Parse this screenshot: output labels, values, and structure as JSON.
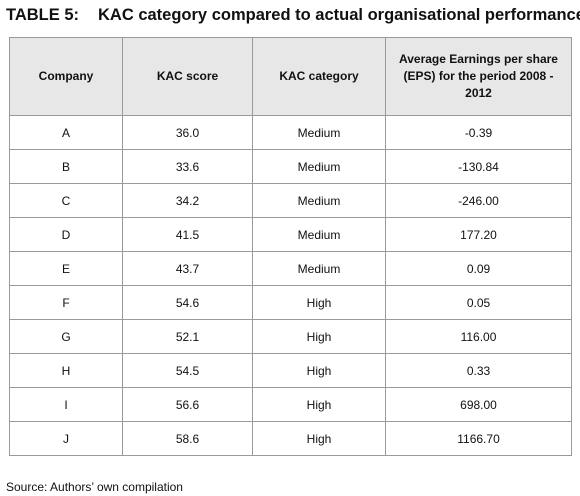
{
  "title": {
    "label": "TABLE 5:",
    "text": "KAC category compared to actual organisational performance"
  },
  "table": {
    "headers": [
      "Company",
      "KAC score",
      "KAC category",
      "Average Earnings per share (EPS) for the period 2008 - 2012"
    ],
    "rows": [
      [
        "A",
        "36.0",
        "Medium",
        "-0.39"
      ],
      [
        "B",
        "33.6",
        "Medium",
        "-130.84"
      ],
      [
        "C",
        "34.2",
        "Medium",
        "-246.00"
      ],
      [
        "D",
        "41.5",
        "Medium",
        "177.20"
      ],
      [
        "E",
        "43.7",
        "Medium",
        "0.09"
      ],
      [
        "F",
        "54.6",
        "High",
        "0.05"
      ],
      [
        "G",
        "52.1",
        "High",
        "116.00"
      ],
      [
        "H",
        "54.5",
        "High",
        "0.33"
      ],
      [
        "I",
        "56.6",
        "High",
        "698.00"
      ],
      [
        "J",
        "58.6",
        "High",
        "1166.70"
      ]
    ]
  },
  "source": "Source: Authors’ own compilation"
}
